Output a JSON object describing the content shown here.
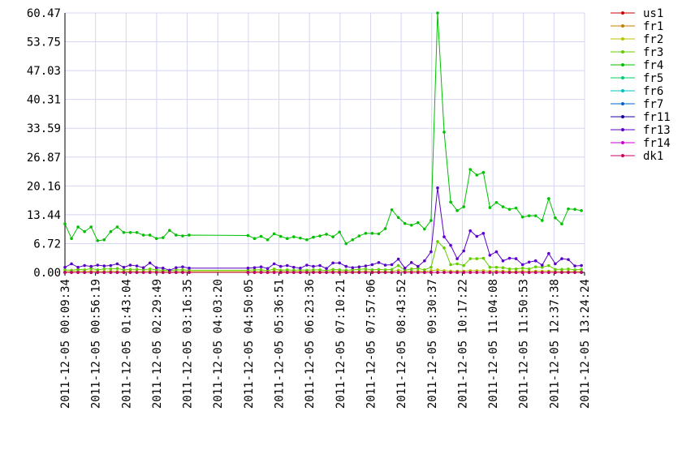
{
  "chart_data": {
    "type": "line",
    "x": [
      "2011-12-05 00:09:34",
      "2011-12-05 00:19:34",
      "2011-12-05 00:29:34",
      "2011-12-05 00:39:34",
      "2011-12-05 00:49:34",
      "2011-12-05 00:59:34",
      "2011-12-05 01:09:34",
      "2011-12-05 01:19:34",
      "2011-12-05 01:29:34",
      "2011-12-05 01:39:34",
      "2011-12-05 01:49:34",
      "2011-12-05 01:59:34",
      "2011-12-05 02:09:34",
      "2011-12-05 02:19:34",
      "2011-12-05 02:29:34",
      "2011-12-05 02:39:34",
      "2011-12-05 02:49:34",
      "2011-12-05 02:59:34",
      "2011-12-05 03:09:34",
      "2011-12-05 03:19:34",
      "2011-12-05 04:49:34",
      "2011-12-05 04:59:34",
      "2011-12-05 05:09:34",
      "2011-12-05 05:19:34",
      "2011-12-05 05:29:34",
      "2011-12-05 05:39:34",
      "2011-12-05 05:49:34",
      "2011-12-05 05:59:34",
      "2011-12-05 06:09:34",
      "2011-12-05 06:19:34",
      "2011-12-05 06:29:34",
      "2011-12-05 06:39:34",
      "2011-12-05 06:49:34",
      "2011-12-05 06:59:34",
      "2011-12-05 07:09:34",
      "2011-12-05 07:19:34",
      "2011-12-05 07:29:34",
      "2011-12-05 07:39:34",
      "2011-12-05 07:49:34",
      "2011-12-05 07:59:34",
      "2011-12-05 08:09:34",
      "2011-12-05 08:19:34",
      "2011-12-05 08:29:34",
      "2011-12-05 08:39:34",
      "2011-12-05 08:49:34",
      "2011-12-05 08:59:34",
      "2011-12-05 09:09:34",
      "2011-12-05 09:19:34",
      "2011-12-05 09:29:34",
      "2011-12-05 09:39:34",
      "2011-12-05 09:49:34",
      "2011-12-05 09:59:34",
      "2011-12-05 10:09:34",
      "2011-12-05 10:19:34",
      "2011-12-05 10:29:34",
      "2011-12-05 10:39:34",
      "2011-12-05 10:49:34",
      "2011-12-05 10:59:34",
      "2011-12-05 11:09:34",
      "2011-12-05 11:19:34",
      "2011-12-05 11:29:34",
      "2011-12-05 11:39:34",
      "2011-12-05 11:49:34",
      "2011-12-05 11:59:34",
      "2011-12-05 12:09:34",
      "2011-12-05 12:19:34",
      "2011-12-05 12:29:34",
      "2011-12-05 12:39:34",
      "2011-12-05 12:49:34",
      "2011-12-05 12:59:34",
      "2011-12-05 13:09:34",
      "2011-12-05 13:19:34"
    ],
    "xlim": [
      "2011-12-05 00:09:34",
      "2011-12-05 13:24:24"
    ],
    "xticks": [
      "2011-12-05 00:09:34",
      "2011-12-05 00:56:19",
      "2011-12-05 01:43:04",
      "2011-12-05 02:29:49",
      "2011-12-05 03:16:35",
      "2011-12-05 04:03:20",
      "2011-12-05 04:50:05",
      "2011-12-05 05:36:51",
      "2011-12-05 06:23:36",
      "2011-12-05 07:10:21",
      "2011-12-05 07:57:06",
      "2011-12-05 08:43:52",
      "2011-12-05 09:30:37",
      "2011-12-05 10:17:22",
      "2011-12-05 11:04:08",
      "2011-12-05 11:50:53",
      "2011-12-05 12:37:38",
      "2011-12-05 13:24:24"
    ],
    "ylim": [
      0,
      60.47
    ],
    "yticks": [
      {
        "value": 0,
        "label": "0.00"
      },
      6.72,
      13.44,
      20.16,
      26.87,
      33.59,
      40.31,
      47.03,
      53.75,
      60.47
    ],
    "grid": true,
    "series": [
      {
        "name": "us1",
        "color": "#cc0000",
        "values": [
          0,
          0,
          0,
          0,
          0,
          0,
          0,
          0,
          0,
          0,
          0,
          0,
          0,
          0,
          0,
          0,
          0,
          0,
          0,
          0,
          0,
          0,
          0,
          0,
          0,
          0,
          0,
          0,
          0,
          0,
          0,
          0,
          0,
          0,
          0,
          0,
          0,
          0,
          0,
          0,
          0,
          0,
          0,
          0,
          0,
          0,
          0,
          0,
          0,
          0,
          0,
          0,
          0,
          0,
          0,
          0,
          0,
          0,
          0,
          0,
          0,
          0,
          0,
          0,
          0,
          0,
          0,
          0,
          0,
          0,
          0,
          0
        ]
      },
      {
        "name": "fr1",
        "color": "#cc7a00",
        "values": [
          0,
          0,
          0,
          0,
          0,
          0,
          0,
          0,
          0,
          0,
          0,
          0,
          0,
          0,
          0,
          0,
          0,
          0,
          0,
          0,
          0,
          0,
          0,
          0,
          0,
          0,
          0,
          0,
          0,
          0,
          0,
          0,
          0,
          0,
          0,
          0,
          0,
          0,
          0,
          0,
          0,
          0,
          0,
          0,
          0,
          0,
          0,
          0,
          0,
          0,
          0,
          0,
          0,
          0,
          0,
          0,
          0,
          0,
          0,
          0,
          0,
          0,
          0,
          0,
          0,
          0,
          0,
          0,
          0,
          0,
          0,
          0
        ]
      },
      {
        "name": "fr2",
        "color": "#b8c400",
        "values": [
          0.2,
          0.2,
          0.3,
          0.2,
          0.3,
          0.2,
          0.2,
          0.3,
          0.2,
          0.2,
          0.3,
          0.2,
          0.2,
          0.3,
          0.2,
          0.2,
          0.1,
          0.2,
          0.2,
          0.2,
          0.2,
          0.2,
          0.2,
          0.1,
          0.3,
          0.2,
          0.2,
          0.2,
          0.2,
          0.2,
          0.2,
          0.2,
          0.1,
          0.3,
          0.2,
          0.2,
          0.2,
          0.2,
          0.3,
          0.2,
          0.2,
          0.2,
          0.2,
          0.5,
          0.2,
          0.3,
          0.3,
          0.2,
          0.4,
          0.6,
          0.4,
          0.3,
          0.3,
          0.3,
          0.4,
          0.4,
          0.4,
          0.3,
          0.3,
          0.3,
          0.2,
          0.2,
          0.3,
          0.2,
          0.3,
          0.3,
          0.3,
          0.2,
          0.2,
          0.2,
          0.2,
          0.2
        ]
      },
      {
        "name": "fr3",
        "color": "#66cc00",
        "values": [
          0.6,
          0.5,
          0.7,
          0.6,
          0.9,
          0.6,
          0.8,
          0.8,
          0.9,
          0.6,
          0.7,
          0.7,
          0.6,
          0.8,
          0.6,
          0.5,
          0.4,
          0.6,
          0.6,
          0.5,
          0.5,
          0.6,
          0.6,
          0.4,
          0.8,
          0.5,
          0.6,
          0.5,
          0.6,
          0.5,
          0.6,
          0.6,
          0.4,
          0.7,
          0.6,
          0.5,
          0.6,
          0.7,
          0.8,
          0.6,
          0.7,
          0.6,
          0.7,
          1.6,
          0.5,
          0.8,
          0.9,
          0.6,
          1.2,
          7.2,
          5.7,
          1.8,
          2.0,
          1.6,
          3.2,
          3.2,
          3.3,
          1.2,
          1.2,
          1.1,
          0.8,
          0.8,
          1.0,
          0.8,
          1.3,
          1.2,
          1.6,
          0.7,
          0.7,
          0.8,
          0.6,
          0.7
        ]
      },
      {
        "name": "fr4",
        "color": "#00c000",
        "values": [
          11.3,
          7.9,
          10.6,
          9.5,
          10.6,
          7.4,
          7.6,
          9.5,
          10.6,
          9.3,
          9.3,
          9.3,
          8.7,
          8.7,
          7.9,
          8.1,
          9.8,
          8.7,
          8.5,
          8.7,
          8.6,
          7.9,
          8.4,
          7.6,
          9.0,
          8.4,
          7.9,
          8.3,
          8.0,
          7.6,
          8.2,
          8.5,
          8.9,
          8.3,
          9.4,
          6.7,
          7.6,
          8.5,
          9.1,
          9.1,
          9.0,
          10.2,
          14.6,
          12.8,
          11.4,
          11.0,
          11.6,
          10.1,
          12.1,
          60.47,
          32.7,
          16.4,
          14.4,
          15.3,
          24.0,
          22.7,
          23.3,
          15.1,
          16.3,
          15.3,
          14.7,
          15.0,
          12.9,
          13.2,
          13.2,
          12.1,
          17.2,
          12.7,
          11.3,
          14.8,
          14.7,
          14.4
        ]
      },
      {
        "name": "fr5",
        "color": "#00cc66",
        "values": [
          0,
          0,
          0,
          0,
          0,
          0,
          0,
          0,
          0,
          0,
          0,
          0,
          0,
          0,
          0,
          0,
          0,
          0,
          0,
          0,
          0,
          0,
          0,
          0,
          0,
          0,
          0,
          0,
          0,
          0,
          0,
          0,
          0,
          0,
          0,
          0,
          0,
          0,
          0,
          0,
          0,
          0,
          0,
          0,
          0,
          0,
          0,
          0,
          0,
          0,
          0,
          0,
          0,
          0,
          0,
          0,
          0,
          0,
          0,
          0,
          0,
          0,
          0,
          0,
          0,
          0,
          0,
          0,
          0,
          0,
          0,
          0
        ]
      },
      {
        "name": "fr6",
        "color": "#00c0c0",
        "values": [
          0,
          0,
          0,
          0,
          0,
          0,
          0,
          0,
          0,
          0,
          0,
          0,
          0,
          0,
          0,
          0,
          0,
          0,
          0,
          0,
          0,
          0,
          0,
          0,
          0,
          0,
          0,
          0,
          0,
          0,
          0,
          0,
          0,
          0,
          0,
          0,
          0,
          0,
          0,
          0,
          0,
          0,
          0,
          0,
          0,
          0,
          0,
          0,
          0,
          0,
          0,
          0,
          0,
          0,
          0,
          0,
          0,
          0,
          0,
          0,
          0,
          0,
          0,
          0,
          0,
          0,
          0,
          0,
          0,
          0,
          0,
          0
        ]
      },
      {
        "name": "fr7",
        "color": "#0066cc",
        "values": [
          0,
          0,
          0,
          0,
          0,
          0,
          0,
          0,
          0,
          0,
          0,
          0,
          0,
          0,
          0,
          0,
          0,
          0,
          0,
          0,
          0,
          0,
          0,
          0,
          0,
          0,
          0,
          0,
          0,
          0,
          0,
          0,
          0,
          0,
          0,
          0,
          0,
          0,
          0,
          0,
          0,
          0,
          0,
          0,
          0,
          0,
          0,
          0,
          0,
          0,
          0,
          0,
          0,
          0,
          0,
          0,
          0,
          0,
          0,
          0,
          0,
          0,
          0,
          0,
          0,
          0,
          0,
          0,
          0,
          0,
          0,
          0
        ]
      },
      {
        "name": "fr11",
        "color": "#1a00a0",
        "values": [
          0,
          0,
          0,
          0,
          0,
          0,
          0,
          0,
          0,
          0,
          0,
          0,
          0,
          0,
          0,
          0,
          0,
          0,
          0,
          0,
          0,
          0,
          0,
          0,
          0,
          0,
          0,
          0,
          0,
          0,
          0,
          0,
          0,
          0,
          0,
          0,
          0,
          0,
          0,
          0,
          0,
          0,
          0,
          0,
          0,
          0,
          0,
          0,
          0,
          0,
          0,
          0,
          0,
          0,
          0,
          0,
          0,
          0,
          0,
          0,
          0,
          0,
          0,
          0,
          0,
          0,
          0,
          0,
          0,
          0,
          0,
          0
        ]
      },
      {
        "name": "fr13",
        "color": "#5a00c8",
        "values": [
          1.2,
          2.0,
          1.2,
          1.6,
          1.4,
          1.7,
          1.5,
          1.6,
          2.0,
          1.2,
          1.7,
          1.5,
          1.1,
          2.2,
          1.1,
          1.0,
          0.5,
          1.1,
          1.3,
          1.0,
          1.0,
          1.1,
          1.3,
          0.9,
          2.0,
          1.4,
          1.6,
          1.2,
          1.0,
          1.7,
          1.4,
          1.6,
          0.9,
          2.2,
          2.2,
          1.4,
          1.1,
          1.3,
          1.5,
          1.8,
          2.3,
          1.7,
          1.8,
          3.1,
          1.0,
          2.3,
          1.4,
          2.7,
          4.8,
          19.7,
          8.3,
          6.3,
          3.2,
          5.0,
          9.7,
          8.4,
          9.1,
          4.0,
          4.8,
          2.7,
          3.3,
          3.2,
          1.8,
          2.4,
          2.7,
          1.7,
          4.4,
          2.0,
          3.2,
          3.0,
          1.5,
          1.6
        ]
      },
      {
        "name": "fr14",
        "color": "#cc00cc",
        "values": [
          0,
          0,
          0,
          0,
          0,
          0,
          0,
          0,
          0,
          0,
          0,
          0,
          0,
          0,
          0,
          0,
          0,
          0,
          0,
          0,
          0,
          0,
          0,
          0,
          0,
          0,
          0,
          0,
          0,
          0,
          0,
          0,
          0,
          0,
          0,
          0,
          0,
          0,
          0,
          0,
          0,
          0,
          0,
          0,
          0,
          0,
          0,
          0,
          0,
          0,
          0,
          0,
          0,
          0,
          0,
          0,
          0,
          0,
          0,
          0,
          0,
          0,
          0,
          0,
          0,
          0,
          0,
          0,
          0,
          0,
          0,
          0
        ]
      },
      {
        "name": "dk1",
        "color": "#cc0066",
        "values": [
          0,
          0,
          0,
          0,
          0,
          0,
          0,
          0,
          0,
          0,
          0,
          0,
          0,
          0,
          0,
          0,
          0,
          0,
          0,
          0,
          0,
          0,
          0,
          0,
          0,
          0,
          0,
          0,
          0,
          0,
          0,
          0,
          0,
          0,
          0,
          0,
          0,
          0,
          0,
          0,
          0,
          0,
          0,
          0,
          0,
          0,
          0,
          0,
          0,
          0,
          0,
          0,
          0,
          0,
          0,
          0,
          0,
          0,
          0,
          0,
          0,
          0,
          0,
          0,
          0,
          0,
          0,
          0,
          0,
          0,
          0,
          0
        ]
      }
    ]
  }
}
